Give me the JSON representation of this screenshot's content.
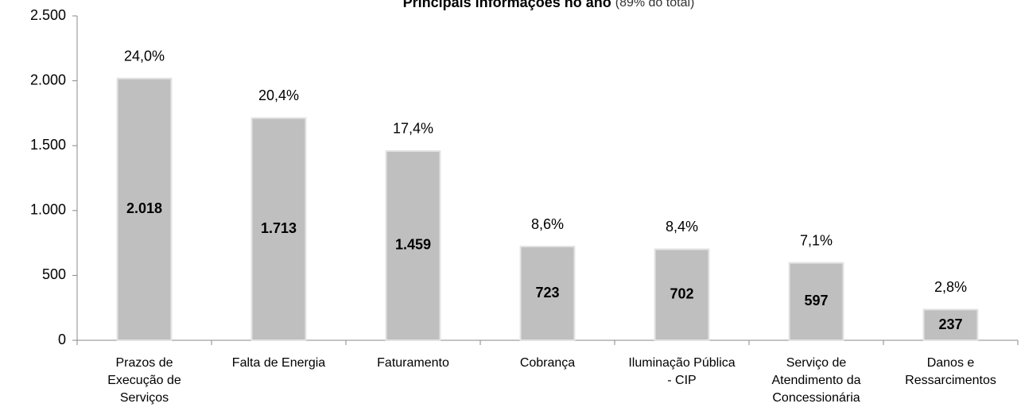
{
  "chart_data": {
    "type": "bar",
    "title": "Principais informações no ano",
    "subtitle": "(89% do total)",
    "categories": [
      "Prazos de Execução de Serviços",
      "Falta de Energia",
      "Faturamento",
      "Cobrança",
      "Iluminação Pública - CIP",
      "Serviço de Atendimento da Concessionária",
      "Danos e Ressarcimentos"
    ],
    "values": [
      2018,
      1713,
      1459,
      723,
      702,
      597,
      237
    ],
    "value_labels": [
      "2.018",
      "1.713",
      "1.459",
      "723",
      "702",
      "597",
      "237"
    ],
    "share_labels": [
      "24,0%",
      "20,4%",
      "17,4%",
      "8,6%",
      "8,4%",
      "7,1%",
      "2,8%"
    ],
    "color": "#bfbfbf",
    "ylim": [
      0,
      2500
    ],
    "yticks": [
      0,
      500,
      {
        "value": 1000,
        "label": "1.000"
      },
      {
        "value": 1500,
        "label": "1.500"
      },
      {
        "value": 2000,
        "label": "2.000"
      },
      {
        "value": 2500,
        "label": "2.500"
      }
    ]
  }
}
